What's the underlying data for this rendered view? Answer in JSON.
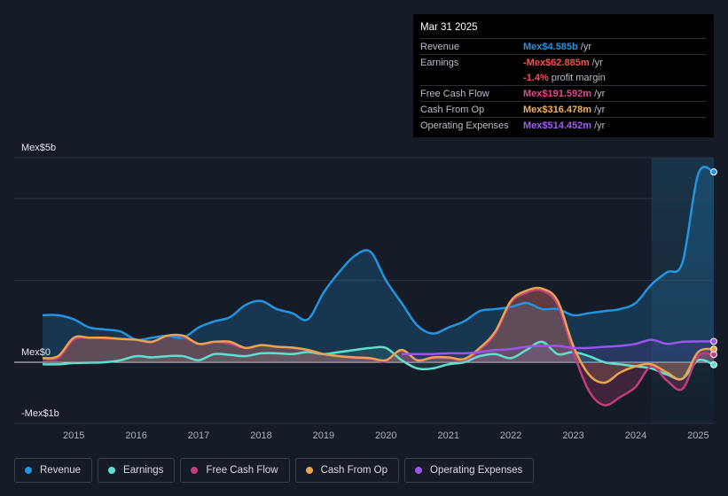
{
  "tooltip": {
    "date": "Mar 31 2025",
    "rows": [
      {
        "label": "Revenue",
        "value": "Mex$4.585b",
        "unit": "/yr",
        "color": "#2394df"
      },
      {
        "label": "Earnings",
        "value": "-Mex$62.885m",
        "unit": "/yr",
        "color": "#ff4d4d"
      },
      {
        "label": "",
        "value": "-1.4%",
        "unit": "profit margin",
        "color": "#ff4d4d"
      },
      {
        "label": "Free Cash Flow",
        "value": "Mex$191.592m",
        "unit": "/yr",
        "color": "#e2488e"
      },
      {
        "label": "Cash From Op",
        "value": "Mex$316.478m",
        "unit": "/yr",
        "color": "#f0b05e"
      },
      {
        "label": "Operating Expenses",
        "value": "Mex$514.452m",
        "unit": "/yr",
        "color": "#a35cf4"
      }
    ]
  },
  "legend": [
    {
      "label": "Revenue",
      "color": "#2394df"
    },
    {
      "label": "Earnings",
      "color": "#5fe0cf"
    },
    {
      "label": "Free Cash Flow",
      "color": "#c23e7b"
    },
    {
      "label": "Cash From Op",
      "color": "#e7a451"
    },
    {
      "label": "Operating Expenses",
      "color": "#9a55ea"
    }
  ],
  "chart_data": {
    "type": "area",
    "title": "",
    "y_unit_labels": {
      "top": "Mex$5b",
      "zero": "Mex$0",
      "bottom": "-Mex$1b"
    },
    "ylim": [
      -1.5,
      5.0
    ],
    "xlim": [
      2014.5,
      2025.25
    ],
    "forecast_start": 2024.25,
    "x_ticks": [
      "2015",
      "2016",
      "2017",
      "2018",
      "2019",
      "2020",
      "2021",
      "2022",
      "2023",
      "2024",
      "2025"
    ],
    "x": [
      2014.5,
      2014.75,
      2015.0,
      2015.25,
      2015.5,
      2015.75,
      2016.0,
      2016.25,
      2016.5,
      2016.75,
      2017.0,
      2017.25,
      2017.5,
      2017.75,
      2018.0,
      2018.25,
      2018.5,
      2018.75,
      2019.0,
      2019.25,
      2019.5,
      2019.75,
      2020.0,
      2020.25,
      2020.5,
      2020.75,
      2021.0,
      2021.25,
      2021.5,
      2021.75,
      2022.0,
      2022.25,
      2022.5,
      2022.75,
      2023.0,
      2023.25,
      2023.5,
      2023.75,
      2024.0,
      2024.25,
      2024.5,
      2024.75,
      2025.0,
      2025.25
    ],
    "series": [
      {
        "name": "Revenue",
        "color": "#2394df",
        "values": [
          1.15,
          1.15,
          1.05,
          0.85,
          0.8,
          0.75,
          0.55,
          0.6,
          0.65,
          0.6,
          0.85,
          1.0,
          1.1,
          1.4,
          1.5,
          1.3,
          1.2,
          1.05,
          1.7,
          2.2,
          2.6,
          2.7,
          2.0,
          1.45,
          0.9,
          0.7,
          0.85,
          1.0,
          1.25,
          1.3,
          1.35,
          1.45,
          1.3,
          1.3,
          1.15,
          1.2,
          1.25,
          1.3,
          1.45,
          1.9,
          2.2,
          2.45,
          4.6,
          4.65
        ]
      },
      {
        "name": "Earnings",
        "color": "#5fe0cf",
        "values": [
          -0.05,
          -0.05,
          -0.02,
          -0.01,
          0.0,
          0.05,
          0.15,
          0.12,
          0.15,
          0.15,
          0.05,
          0.2,
          0.18,
          0.15,
          0.22,
          0.22,
          0.2,
          0.25,
          0.2,
          0.25,
          0.3,
          0.35,
          0.35,
          0.05,
          -0.15,
          -0.15,
          -0.05,
          0.0,
          0.15,
          0.2,
          0.1,
          0.3,
          0.5,
          0.2,
          0.25,
          0.15,
          0.0,
          -0.05,
          -0.1,
          -0.15,
          -0.3,
          -0.4,
          0.05,
          -0.06
        ]
      },
      {
        "name": "Free Cash Flow",
        "color": "#c23e7b",
        "values": [
          0.1,
          0.1,
          0.55,
          0.6,
          0.58,
          0.57,
          0.55,
          0.5,
          0.65,
          0.62,
          0.45,
          0.5,
          0.45,
          0.35,
          0.42,
          0.38,
          0.35,
          0.3,
          0.2,
          0.15,
          0.1,
          0.08,
          0.03,
          0.3,
          0.05,
          0.1,
          0.1,
          0.05,
          0.3,
          0.7,
          1.45,
          1.7,
          1.75,
          1.4,
          0.25,
          -0.7,
          -1.05,
          -0.85,
          -0.6,
          -0.1,
          -0.45,
          -0.65,
          0.15,
          0.19
        ]
      },
      {
        "name": "Cash From Op",
        "color": "#e7a451",
        "values": [
          0.1,
          0.15,
          0.6,
          0.6,
          0.6,
          0.57,
          0.55,
          0.5,
          0.65,
          0.65,
          0.45,
          0.5,
          0.5,
          0.35,
          0.42,
          0.38,
          0.36,
          0.3,
          0.2,
          0.15,
          0.12,
          0.1,
          0.05,
          0.3,
          0.05,
          0.12,
          0.12,
          0.08,
          0.35,
          0.75,
          1.5,
          1.75,
          1.8,
          1.5,
          0.4,
          -0.3,
          -0.5,
          -0.25,
          -0.1,
          -0.05,
          -0.25,
          -0.4,
          0.25,
          0.32
        ]
      },
      {
        "name": "Operating Expenses",
        "color": "#9a55ea",
        "values": [
          null,
          null,
          null,
          null,
          null,
          null,
          null,
          null,
          null,
          null,
          null,
          null,
          null,
          null,
          null,
          null,
          null,
          null,
          null,
          null,
          null,
          null,
          null,
          0.2,
          0.2,
          0.2,
          0.22,
          0.22,
          0.25,
          0.3,
          0.32,
          0.38,
          0.4,
          0.4,
          0.35,
          0.35,
          0.38,
          0.4,
          0.45,
          0.55,
          0.45,
          0.5,
          0.51,
          0.51
        ]
      }
    ]
  }
}
